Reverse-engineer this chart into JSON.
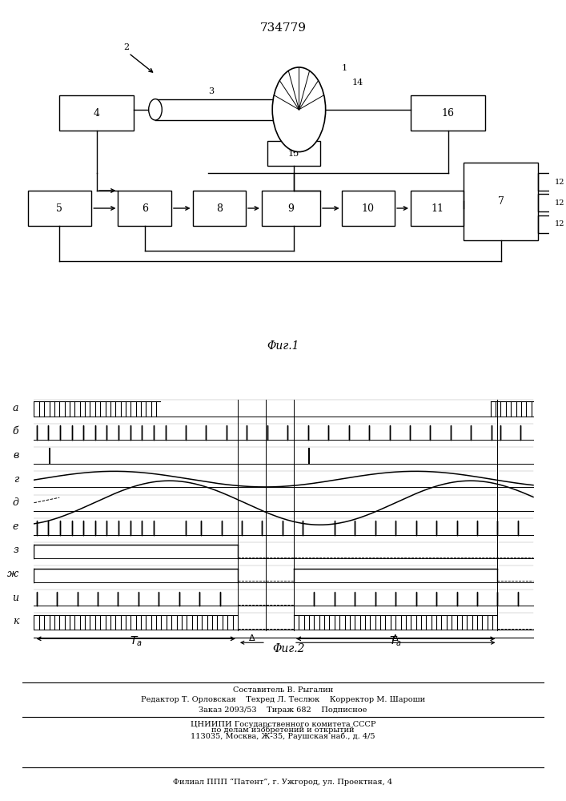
{
  "title": "734779",
  "fig2_label": "Φиг.2",
  "fig1_label": "Φиг.1",
  "background": "#ffffff",
  "channel_labels": [
    "а",
    "б",
    "в",
    "г",
    "д",
    "е",
    "з",
    "ж",
    "и",
    "к"
  ],
  "footer_lines": [
    "Составитель В. Рыгалин",
    "Редактор Т. Орловская    Техред Л. Теслюк    Корректор М. Шароши",
    "Заказ 2093/53    Тираж 682    Подписное",
    "ЦНИИПИ Государственного комитета СССР",
    "по делам изобретений и открытий",
    "113035, Москва, Ж-35, Раушская наб., д. 4/5",
    "Филиал ППП “Патент”, г. Ужгород, ул. Проектная, 4"
  ]
}
